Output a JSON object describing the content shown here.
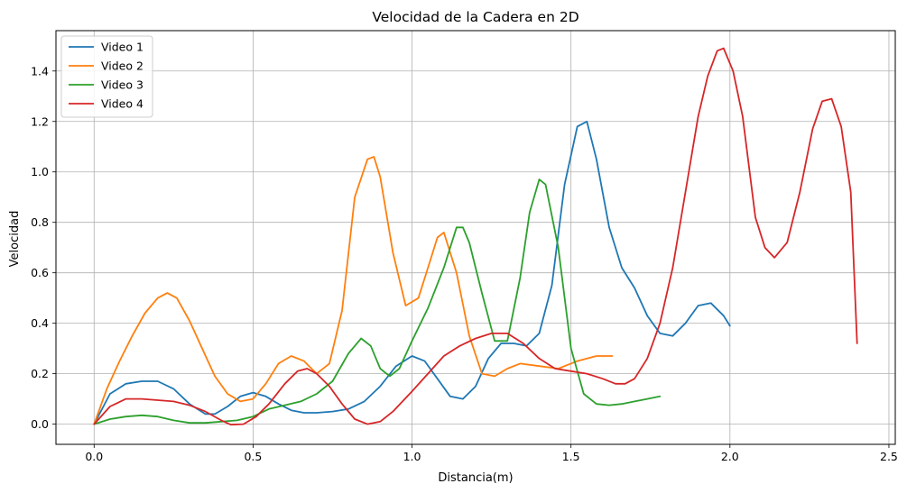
{
  "chart_data": {
    "type": "line",
    "title": "Velocidad de la Cadera en 2D",
    "xlabel": "Distancia(m)",
    "ylabel": "Velocidad",
    "xlim": [
      -0.12,
      2.52
    ],
    "ylim": [
      -0.08,
      1.56
    ],
    "xticks": [
      0.0,
      0.5,
      1.0,
      1.5,
      2.0,
      2.5
    ],
    "xtick_labels": [
      "0.0",
      "0.5",
      "1.0",
      "1.5",
      "2.0",
      "2.5"
    ],
    "yticks": [
      0.0,
      0.2,
      0.4,
      0.6,
      0.8,
      1.0,
      1.2,
      1.4
    ],
    "ytick_labels": [
      "0.0",
      "0.2",
      "0.4",
      "0.6",
      "0.8",
      "1.0",
      "1.2",
      "1.4"
    ],
    "grid": true,
    "legend_position": "top-left",
    "series": [
      {
        "name": "Video 1",
        "color": "#1f77b4",
        "x": [
          0.0,
          0.05,
          0.1,
          0.15,
          0.2,
          0.25,
          0.3,
          0.35,
          0.38,
          0.42,
          0.46,
          0.5,
          0.54,
          0.58,
          0.62,
          0.66,
          0.7,
          0.75,
          0.8,
          0.85,
          0.9,
          0.95,
          1.0,
          1.04,
          1.08,
          1.12,
          1.16,
          1.2,
          1.24,
          1.28,
          1.32,
          1.36,
          1.4,
          1.44,
          1.48,
          1.52,
          1.55,
          1.58,
          1.62,
          1.66,
          1.7,
          1.74,
          1.78,
          1.82,
          1.86,
          1.9,
          1.94,
          1.98,
          2.0
        ],
        "y": [
          0.0,
          0.12,
          0.16,
          0.17,
          0.17,
          0.14,
          0.08,
          0.04,
          0.04,
          0.07,
          0.11,
          0.125,
          0.11,
          0.08,
          0.055,
          0.045,
          0.045,
          0.05,
          0.06,
          0.09,
          0.15,
          0.23,
          0.27,
          0.25,
          0.18,
          0.11,
          0.1,
          0.15,
          0.26,
          0.32,
          0.32,
          0.31,
          0.36,
          0.55,
          0.95,
          1.18,
          1.2,
          1.05,
          0.78,
          0.62,
          0.54,
          0.43,
          0.36,
          0.35,
          0.4,
          0.47,
          0.48,
          0.43,
          0.39
        ]
      },
      {
        "name": "Video 2",
        "color": "#ff7f0e",
        "x": [
          0.0,
          0.04,
          0.08,
          0.12,
          0.16,
          0.2,
          0.23,
          0.26,
          0.3,
          0.34,
          0.38,
          0.42,
          0.46,
          0.5,
          0.54,
          0.58,
          0.62,
          0.66,
          0.7,
          0.74,
          0.78,
          0.82,
          0.86,
          0.88,
          0.9,
          0.94,
          0.98,
          1.02,
          1.05,
          1.08,
          1.1,
          1.14,
          1.18,
          1.22,
          1.26,
          1.3,
          1.34,
          1.4,
          1.46,
          1.52,
          1.58,
          1.63
        ],
        "y": [
          0.0,
          0.14,
          0.25,
          0.35,
          0.44,
          0.5,
          0.52,
          0.5,
          0.41,
          0.3,
          0.19,
          0.12,
          0.09,
          0.1,
          0.16,
          0.24,
          0.27,
          0.25,
          0.2,
          0.24,
          0.45,
          0.9,
          1.05,
          1.06,
          0.98,
          0.68,
          0.47,
          0.5,
          0.62,
          0.74,
          0.76,
          0.6,
          0.35,
          0.2,
          0.19,
          0.22,
          0.24,
          0.23,
          0.22,
          0.25,
          0.27,
          0.27
        ]
      },
      {
        "name": "Video 3",
        "color": "#2ca02c",
        "x": [
          0.0,
          0.05,
          0.1,
          0.15,
          0.2,
          0.25,
          0.3,
          0.35,
          0.4,
          0.45,
          0.5,
          0.55,
          0.6,
          0.65,
          0.7,
          0.75,
          0.8,
          0.84,
          0.87,
          0.9,
          0.93,
          0.96,
          1.0,
          1.05,
          1.1,
          1.14,
          1.16,
          1.18,
          1.22,
          1.26,
          1.3,
          1.34,
          1.37,
          1.4,
          1.42,
          1.46,
          1.5,
          1.54,
          1.58,
          1.62,
          1.66,
          1.7,
          1.74,
          1.78
        ],
        "y": [
          0.0,
          0.02,
          0.03,
          0.035,
          0.03,
          0.015,
          0.005,
          0.005,
          0.01,
          0.015,
          0.03,
          0.06,
          0.075,
          0.09,
          0.12,
          0.17,
          0.28,
          0.34,
          0.31,
          0.22,
          0.19,
          0.22,
          0.33,
          0.46,
          0.62,
          0.78,
          0.78,
          0.72,
          0.52,
          0.33,
          0.33,
          0.58,
          0.84,
          0.97,
          0.95,
          0.7,
          0.3,
          0.12,
          0.08,
          0.075,
          0.08,
          0.09,
          0.1,
          0.11
        ]
      },
      {
        "name": "Video 4",
        "color": "#d62728",
        "x": [
          0.0,
          0.05,
          0.1,
          0.15,
          0.2,
          0.25,
          0.3,
          0.35,
          0.4,
          0.43,
          0.47,
          0.51,
          0.55,
          0.6,
          0.64,
          0.67,
          0.7,
          0.74,
          0.78,
          0.82,
          0.86,
          0.9,
          0.94,
          1.0,
          1.05,
          1.1,
          1.15,
          1.2,
          1.25,
          1.3,
          1.35,
          1.4,
          1.45,
          1.5,
          1.55,
          1.6,
          1.64,
          1.67,
          1.7,
          1.74,
          1.78,
          1.82,
          1.86,
          1.9,
          1.93,
          1.96,
          1.98,
          2.01,
          2.04,
          2.08,
          2.11,
          2.14,
          2.18,
          2.22,
          2.26,
          2.29,
          2.32,
          2.35,
          2.38,
          2.4
        ],
        "y": [
          0.0,
          0.07,
          0.1,
          0.1,
          0.095,
          0.09,
          0.075,
          0.05,
          0.015,
          -0.002,
          0.0,
          0.03,
          0.08,
          0.16,
          0.21,
          0.22,
          0.2,
          0.15,
          0.08,
          0.02,
          0.0,
          0.01,
          0.05,
          0.13,
          0.2,
          0.27,
          0.31,
          0.34,
          0.36,
          0.36,
          0.32,
          0.26,
          0.22,
          0.21,
          0.2,
          0.18,
          0.16,
          0.16,
          0.18,
          0.26,
          0.4,
          0.62,
          0.92,
          1.22,
          1.38,
          1.48,
          1.49,
          1.4,
          1.22,
          0.82,
          0.7,
          0.66,
          0.72,
          0.92,
          1.17,
          1.28,
          1.29,
          1.18,
          0.92,
          0.32
        ]
      }
    ]
  }
}
